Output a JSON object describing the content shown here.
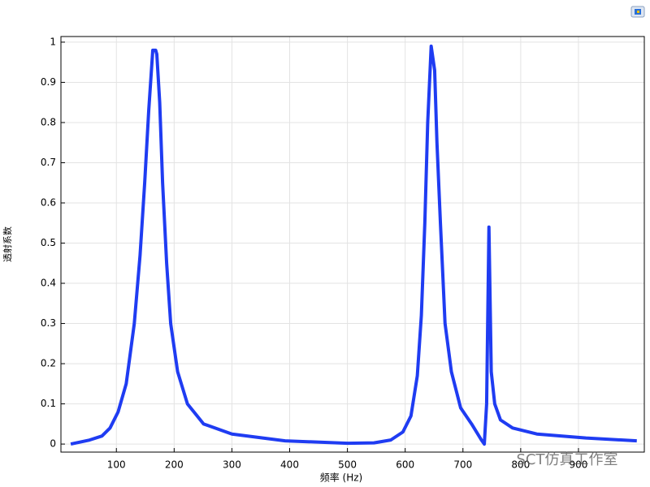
{
  "chart_data": {
    "type": "line",
    "x_label": "频率 (Hz)",
    "y_label": "透射系数",
    "watermark": "SCT仿真工作室",
    "x": [
      21,
      53.5,
      75,
      89,
      103,
      117,
      131,
      141,
      149,
      156,
      163,
      168,
      170,
      175,
      180,
      187,
      194,
      206,
      223,
      251,
      300,
      392,
      500,
      546,
      575,
      596,
      610,
      621,
      628,
      634,
      639,
      645,
      651,
      655,
      661,
      669,
      680,
      696,
      715,
      732,
      737,
      741,
      745,
      749,
      755,
      765,
      786,
      828,
      913,
      1001
    ],
    "series": [
      {
        "color": "#1f3cf2",
        "values": [
          0,
          0.01,
          0.02,
          0.04,
          0.08,
          0.15,
          0.3,
          0.47,
          0.65,
          0.83,
          0.98,
          0.98,
          0.97,
          0.85,
          0.65,
          0.45,
          0.3,
          0.18,
          0.1,
          0.05,
          0.025,
          0.008,
          0.002,
          0.003,
          0.01,
          0.03,
          0.07,
          0.17,
          0.32,
          0.55,
          0.8,
          0.99,
          0.93,
          0.75,
          0.55,
          0.3,
          0.18,
          0.09,
          0.05,
          0.01,
          0,
          0.1,
          0.54,
          0.18,
          0.1,
          0.06,
          0.04,
          0.025,
          0.015,
          0.008
        ]
      }
    ],
    "xlim": [
      4,
      1014
    ],
    "ylim": [
      -0.02,
      1.014
    ],
    "xticks": [
      100,
      200,
      300,
      400,
      500,
      600,
      700,
      800,
      900
    ],
    "yticks": [
      0,
      0.1,
      0.2,
      0.3,
      0.4,
      0.5,
      0.6,
      0.7,
      0.8,
      0.9,
      1
    ],
    "grid": true
  }
}
